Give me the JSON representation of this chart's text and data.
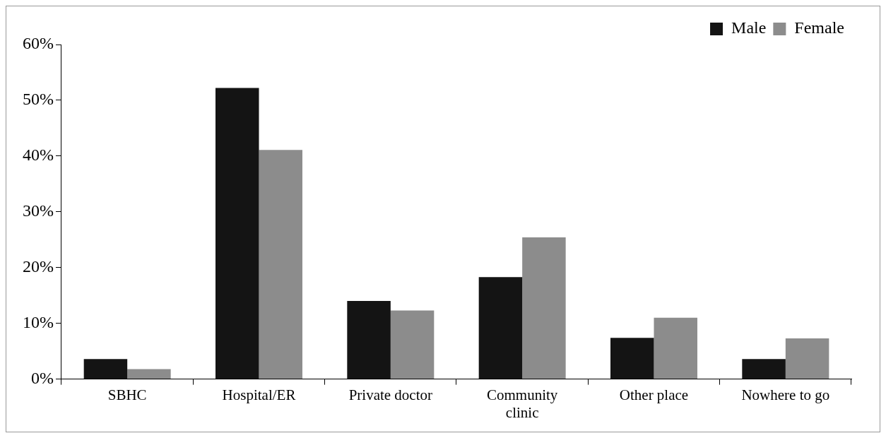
{
  "chart_data": {
    "type": "bar",
    "categories": [
      "SBHC",
      "Hospital/ER",
      "Private doctor",
      "Community clinic",
      "Other place",
      "Nowhere to go"
    ],
    "series": [
      {
        "name": "Male",
        "color": "#141414",
        "values": [
          3.6,
          52.2,
          14.0,
          18.3,
          7.4,
          3.6
        ]
      },
      {
        "name": "Female",
        "color": "#8c8c8c",
        "values": [
          1.8,
          41.1,
          12.3,
          25.4,
          11.0,
          7.3
        ]
      }
    ],
    "ylim": [
      0,
      60
    ],
    "yticks": [
      {
        "value": 0,
        "label": "0%"
      },
      {
        "value": 10,
        "label": "10%"
      },
      {
        "value": 20,
        "label": "20%"
      },
      {
        "value": 30,
        "label": "30%"
      },
      {
        "value": 40,
        "label": "40%"
      },
      {
        "value": 50,
        "label": "50%"
      },
      {
        "value": 60,
        "label": "60%"
      }
    ],
    "grid": false,
    "legend": "top right"
  }
}
